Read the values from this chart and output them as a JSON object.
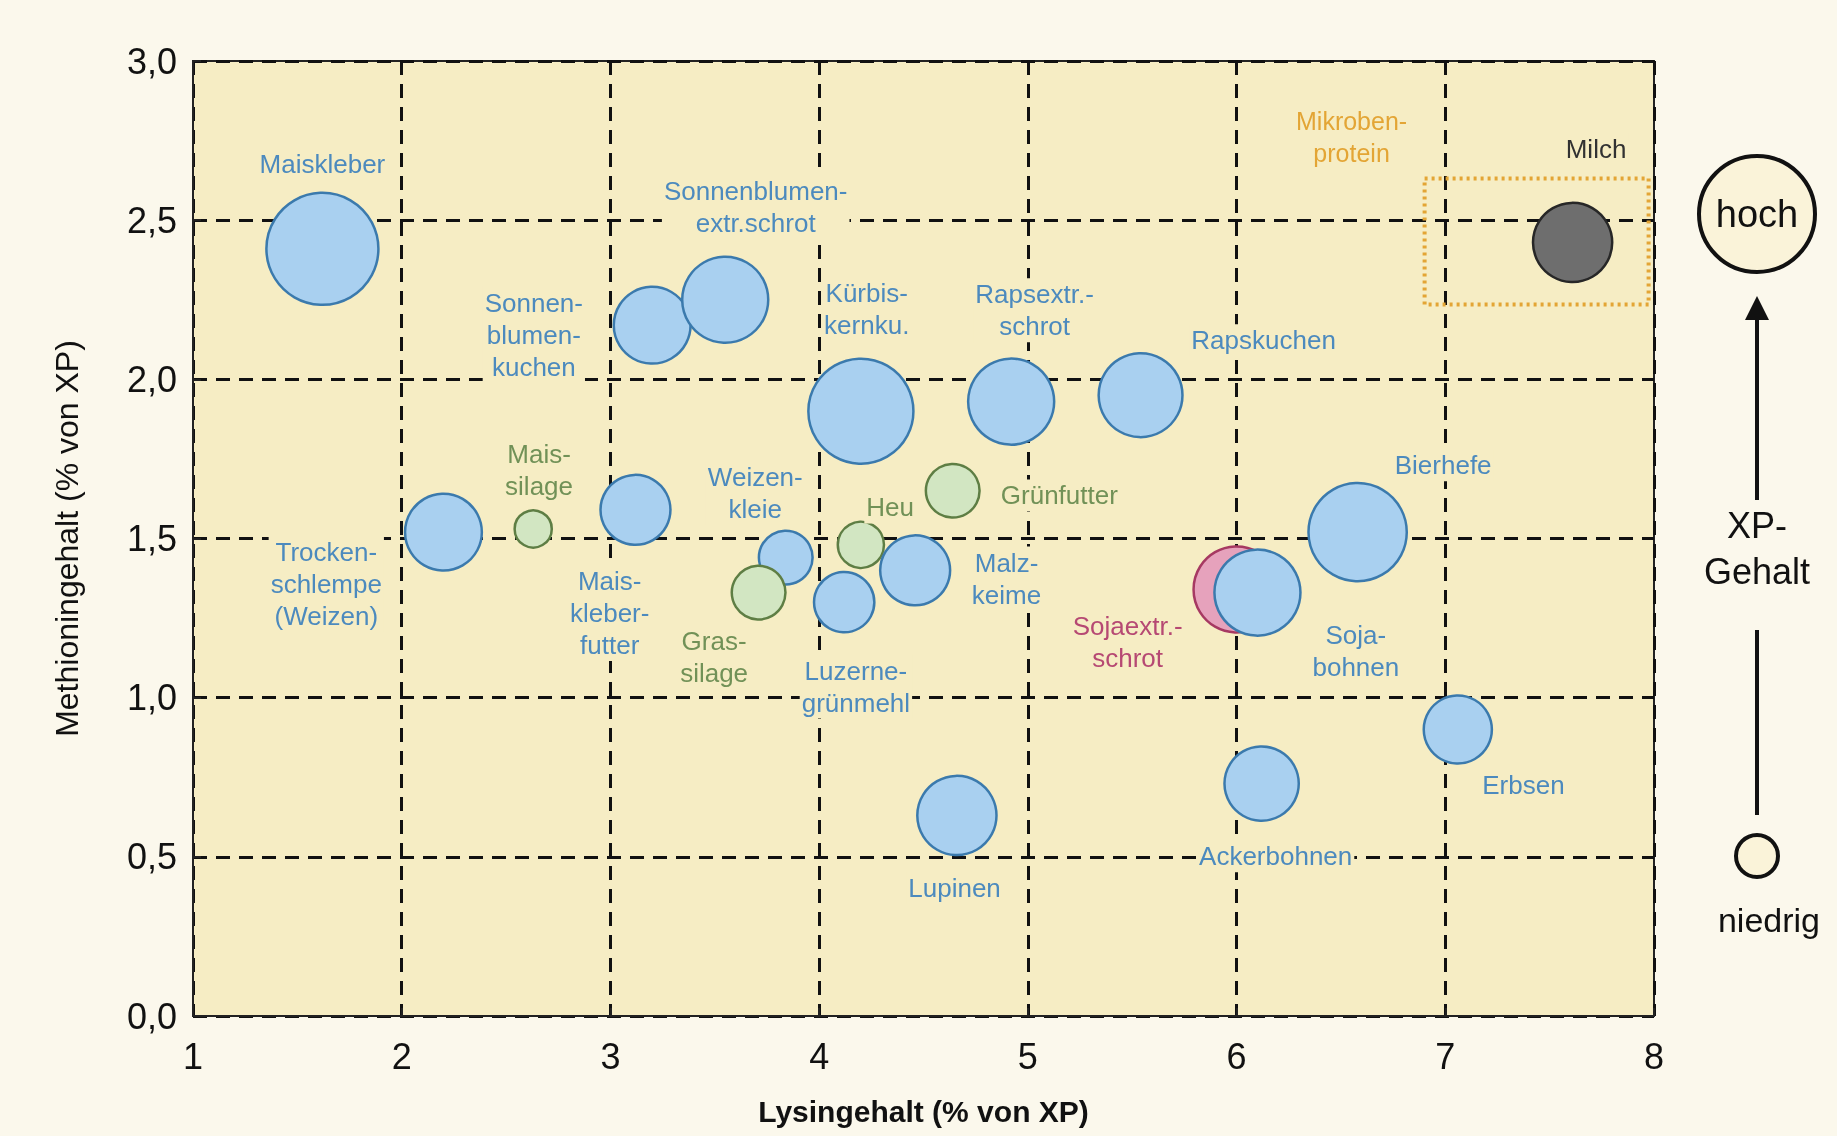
{
  "chart_data": {
    "type": "bubble",
    "xlabel": "Lysingehalt (% von XP)",
    "ylabel": "Methioningehalt (% von XP)",
    "xlim": [
      1,
      8
    ],
    "xticks": [
      1,
      2,
      3,
      4,
      5,
      6,
      7,
      8
    ],
    "ylim": [
      0,
      3
    ],
    "yticks": [
      {
        "value": 0,
        "label": "0,0"
      },
      {
        "value": 0.5,
        "label": "0,5"
      },
      {
        "value": 1,
        "label": "1,0"
      },
      {
        "value": 1.5,
        "label": "1,5"
      },
      {
        "value": 2,
        "label": "2,0"
      },
      {
        "value": 2.5,
        "label": "2,5"
      },
      {
        "value": 3,
        "label": "3,0"
      }
    ],
    "grid": true,
    "legend": false,
    "annotations": [
      "Mikroben-\nprotein",
      "hoch",
      "XP-\nGehalt",
      "niedrig"
    ],
    "series": [
      {
        "name": "Maiskleber",
        "color": "#a9d0f0",
        "x": [
          1.62
        ],
        "values": [
          2.41
        ],
        "sizes": [
          1
        ]
      },
      {
        "name": "Sonnen-\nblumen-\nkuchen",
        "color": "#a9d0f0",
        "x": [
          3.2
        ],
        "values": [
          2.17
        ],
        "sizes": [
          0.47
        ]
      },
      {
        "name": "Sonnenblumen-\nextr.schrot",
        "color": "#a9d0f0",
        "x": [
          3.55
        ],
        "values": [
          2.25
        ],
        "sizes": [
          0.59
        ]
      },
      {
        "name": "Kürbis-\nkernku.",
        "color": "#a9d0f0",
        "x": [
          4.2
        ],
        "values": [
          1.9
        ],
        "sizes": [
          0.88
        ]
      },
      {
        "name": "Rapsextr.-\nschrot",
        "color": "#a9d0f0",
        "x": [
          4.92
        ],
        "values": [
          1.93
        ],
        "sizes": [
          0.59
        ]
      },
      {
        "name": "Rapskuchen",
        "color": "#a9d0f0",
        "x": [
          5.54
        ],
        "values": [
          1.95
        ],
        "sizes": [
          0.56
        ]
      },
      {
        "name": "Trocken-\nschlempe\n(Weizen)",
        "color": "#a9d0f0",
        "x": [
          2.2
        ],
        "values": [
          1.52
        ],
        "sizes": [
          0.47
        ]
      },
      {
        "name": "Mais-\nsilage",
        "color": "#d2e6c2",
        "x": [
          2.63
        ],
        "values": [
          1.53
        ],
        "sizes": [
          0.11
        ]
      },
      {
        "name": "Mais-\nkleber-\nfutter",
        "color": "#a9d0f0",
        "x": [
          3.12
        ],
        "values": [
          1.59
        ],
        "sizes": [
          0.39
        ]
      },
      {
        "name": "Weizen-\nkleie",
        "color": "#a9d0f0",
        "x": [
          3.84
        ],
        "values": [
          1.44
        ],
        "sizes": [
          0.23
        ]
      },
      {
        "name": "Gras-\nsilage",
        "color": "#d2e6c2",
        "x": [
          3.71
        ],
        "values": [
          1.33
        ],
        "sizes": [
          0.23
        ]
      },
      {
        "name": "Heu",
        "color": "#d2e6c2",
        "x": [
          4.2
        ],
        "values": [
          1.48
        ],
        "sizes": [
          0.17
        ]
      },
      {
        "name": "Luzerne-\ngrünmehl",
        "color": "#a9d0f0",
        "x": [
          4.12
        ],
        "values": [
          1.3
        ],
        "sizes": [
          0.29
        ]
      },
      {
        "name": "Malz-\nkeime",
        "color": "#a9d0f0",
        "x": [
          4.46
        ],
        "values": [
          1.4
        ],
        "sizes": [
          0.39
        ]
      },
      {
        "name": "Grünfutter",
        "color": "#d2e6c2",
        "x": [
          4.64
        ],
        "values": [
          1.65
        ],
        "sizes": [
          0.23
        ]
      },
      {
        "name": "Lupinen",
        "color": "#a9d0f0",
        "x": [
          4.66
        ],
        "values": [
          0.63
        ],
        "sizes": [
          0.5
        ]
      },
      {
        "name": "Sojaextr.-\nschrot",
        "color": "#e6a2bc",
        "x": [
          6.0
        ],
        "values": [
          1.34
        ],
        "sizes": [
          0.59
        ]
      },
      {
        "name": "Soja-\nbohnen",
        "color": "#a9d0f0",
        "x": [
          6.1
        ],
        "values": [
          1.33
        ],
        "sizes": [
          0.59
        ]
      },
      {
        "name": "Bierhefe",
        "color": "#a9d0f0",
        "x": [
          6.58
        ],
        "values": [
          1.52
        ],
        "sizes": [
          0.77
        ]
      },
      {
        "name": "Ackerbohnen",
        "color": "#a9d0f0",
        "x": [
          6.12
        ],
        "values": [
          0.73
        ],
        "sizes": [
          0.44
        ]
      },
      {
        "name": "Erbsen",
        "color": "#a9d0f0",
        "x": [
          7.06
        ],
        "values": [
          0.9
        ],
        "sizes": [
          0.37
        ]
      },
      {
        "name": "Milch",
        "color": "#6e6e6e",
        "x": [
          7.61
        ],
        "values": [
          2.43
        ],
        "sizes": [
          0.5
        ]
      }
    ]
  }
}
